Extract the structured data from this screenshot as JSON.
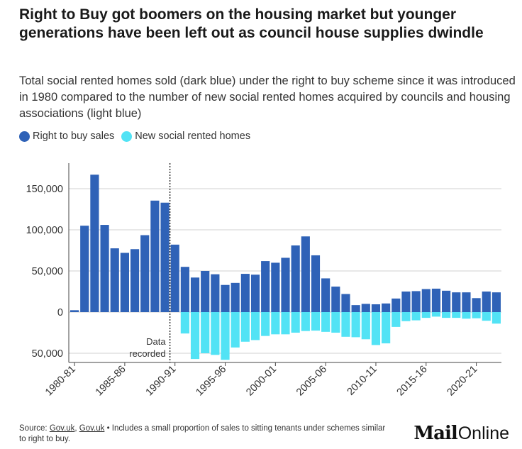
{
  "title": "Right to Buy got boomers on the housing market but younger generations have been left out as council house supplies dwindle",
  "subtitle": "Total social rented homes sold (dark blue) under the right to buy scheme since it was introduced in 1980 compared to the number of new social rented homes acquired by councils and housing associations (light blue)",
  "legend": {
    "items": [
      {
        "label": "Right to buy sales",
        "color": "#2f62b7"
      },
      {
        "label": "New social rented homes",
        "color": "#52e3f5"
      }
    ]
  },
  "chart_data": {
    "type": "bar",
    "title": "",
    "xlabel": "",
    "ylabel": "",
    "ylim": [
      -60000,
      180000
    ],
    "yticks": [
      {
        "value": 150000,
        "label": "150,000"
      },
      {
        "value": 100000,
        "label": "100,000"
      },
      {
        "value": 50000,
        "label": "50,000"
      },
      {
        "value": 0,
        "label": "0"
      },
      {
        "value": -50000,
        "label": "50,000"
      }
    ],
    "grid": true,
    "legend_position": "top-left",
    "categories": [
      "1980-81",
      "1981-82",
      "1982-83",
      "1983-84",
      "1984-85",
      "1985-86",
      "1986-87",
      "1987-88",
      "1988-89",
      "1989-90",
      "1990-91",
      "1991-92",
      "1992-93",
      "1993-94",
      "1994-95",
      "1995-96",
      "1996-97",
      "1997-98",
      "1998-99",
      "1999-00",
      "2000-01",
      "2001-02",
      "2002-03",
      "2003-04",
      "2004-05",
      "2005-06",
      "2006-07",
      "2007-08",
      "2008-09",
      "2009-10",
      "2010-11",
      "2011-12",
      "2012-13",
      "2013-14",
      "2014-15",
      "2015-16",
      "2016-17",
      "2017-18",
      "2018-19",
      "2019-20",
      "2020-21",
      "2021-22",
      "2022-23"
    ],
    "xtick_labels": [
      "1980-81",
      "1985-86",
      "1990-91",
      "1995-96",
      "2000-01",
      "2005-06",
      "2010-11",
      "2015-16",
      "2020-21"
    ],
    "series": [
      {
        "name": "Right to buy sales",
        "color": "#2f62b7",
        "values": [
          2300,
          105000,
          167000,
          106000,
          77500,
          72000,
          76500,
          93500,
          135500,
          133000,
          82000,
          55000,
          42000,
          50000,
          46000,
          33000,
          35500,
          46500,
          45500,
          62000,
          60000,
          66000,
          81000,
          92000,
          69000,
          41000,
          31000,
          22000,
          8500,
          10000,
          9500,
          10500,
          16500,
          25000,
          25500,
          28000,
          28500,
          26000,
          24000,
          24000,
          17000,
          25000,
          24000
        ]
      },
      {
        "name": "New social rented homes",
        "color": "#52e3f5",
        "values": [
          0,
          0,
          0,
          0,
          0,
          0,
          0,
          0,
          0,
          0,
          0,
          -26000,
          -57000,
          -50000,
          -52000,
          -58000,
          -43000,
          -36000,
          -34000,
          -29000,
          -27000,
          -27000,
          -25000,
          -23000,
          -22500,
          -24000,
          -25000,
          -30000,
          -30500,
          -33000,
          -40000,
          -38000,
          -18000,
          -11000,
          -10000,
          -7000,
          -5500,
          -7000,
          -7000,
          -8000,
          -7500,
          -10500,
          -14000
        ]
      }
    ],
    "annotations": [
      {
        "text_lines": [
          "Data",
          "recorded"
        ],
        "category": "1990-91",
        "style": "dotted vertical line"
      }
    ]
  },
  "footer": {
    "source_prefix": "Source: ",
    "link1": "Gov.uk",
    "separator": ", ",
    "link2": "Gov.uk",
    "note": " • Includes a small proportion of sales to sitting tenants under schemes similar to right to buy."
  },
  "logo": {
    "part1": "Mail",
    "part2": "Online"
  }
}
